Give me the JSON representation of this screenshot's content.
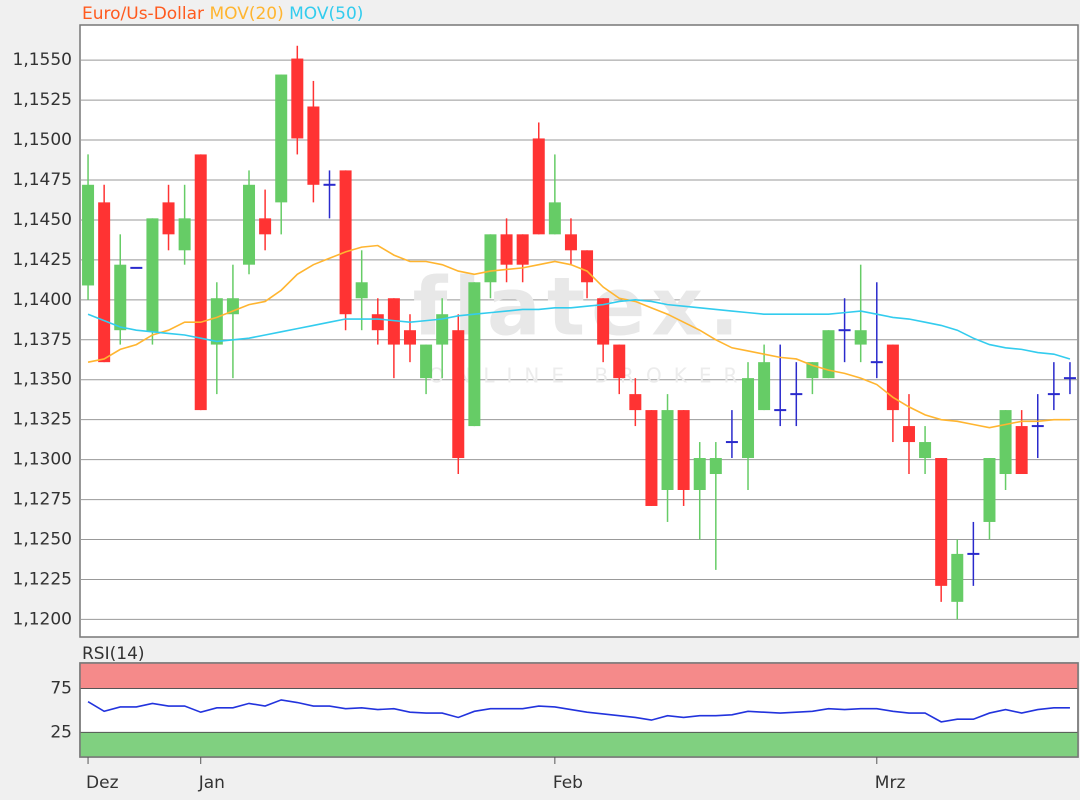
{
  "chart_data": [
    {
      "type": "candlestick",
      "name": "Euro/Us-Dollar",
      "color": "#ff5a1e",
      "up_color": "#66cc66",
      "down_color": "#ff3333",
      "flat_color": "#2a2acc",
      "open": [
        1.1409,
        1.1461,
        1.1381,
        1.142,
        1.138,
        1.1461,
        1.1431,
        1.1491,
        1.1372,
        1.1391,
        1.1422,
        1.1451,
        1.1461,
        1.1551,
        1.1521,
        1.1472,
        1.1481,
        1.1401,
        1.1391,
        1.1401,
        1.1381,
        1.1351,
        1.1372,
        1.1381,
        1.1321,
        1.1411,
        1.1441,
        1.1441,
        1.1501,
        1.1441,
        1.1441,
        1.1431,
        1.1401,
        1.1372,
        1.1341,
        1.1331,
        1.1281,
        1.1331,
        1.1281,
        1.1291,
        1.1311,
        1.1301,
        1.1331,
        1.1331,
        1.1341,
        1.1351,
        1.1351,
        1.1381,
        1.1372,
        1.1361,
        1.1372,
        1.1321,
        1.1301,
        1.1301,
        1.1211,
        1.1241,
        1.1261,
        1.1291,
        1.1321,
        1.1321,
        1.1341,
        1.1351
      ],
      "high": [
        1.1491,
        1.1472,
        1.1441,
        1.142,
        1.1451,
        1.1472,
        1.1472,
        1.1491,
        1.1411,
        1.1422,
        1.1481,
        1.1469,
        1.1541,
        1.1559,
        1.1537,
        1.1481,
        1.1481,
        1.1431,
        1.1401,
        1.1401,
        1.1391,
        1.1372,
        1.1401,
        1.1391,
        1.1411,
        1.1441,
        1.1451,
        1.1441,
        1.1511,
        1.1491,
        1.1451,
        1.1431,
        1.1401,
        1.1372,
        1.1351,
        1.1331,
        1.1341,
        1.1331,
        1.1311,
        1.1311,
        1.1331,
        1.1361,
        1.1372,
        1.1372,
        1.1361,
        1.1361,
        1.1381,
        1.1401,
        1.1422,
        1.1411,
        1.1372,
        1.1341,
        1.1321,
        1.1301,
        1.125,
        1.1261,
        1.1301,
        1.1331,
        1.1331,
        1.1341,
        1.1361,
        1.1361
      ],
      "low": [
        1.14,
        1.1361,
        1.1372,
        1.142,
        1.1372,
        1.1431,
        1.1422,
        1.1331,
        1.1341,
        1.1351,
        1.1416,
        1.1431,
        1.1441,
        1.1491,
        1.1461,
        1.1451,
        1.1381,
        1.1381,
        1.1372,
        1.1351,
        1.1361,
        1.1341,
        1.1351,
        1.1291,
        1.1321,
        1.1401,
        1.1411,
        1.1411,
        1.1441,
        1.1441,
        1.1422,
        1.1401,
        1.1361,
        1.1341,
        1.1321,
        1.1271,
        1.1261,
        1.1271,
        1.125,
        1.1231,
        1.1301,
        1.1281,
        1.1331,
        1.1321,
        1.1321,
        1.1341,
        1.1351,
        1.1361,
        1.1361,
        1.1351,
        1.1311,
        1.1291,
        1.1291,
        1.1211,
        1.12,
        1.1221,
        1.125,
        1.1281,
        1.1291,
        1.1301,
        1.1331,
        1.1341
      ],
      "close": [
        1.1472,
        1.1361,
        1.1422,
        1.142,
        1.1451,
        1.1441,
        1.1451,
        1.1331,
        1.1401,
        1.1401,
        1.1472,
        1.1441,
        1.1541,
        1.1501,
        1.1472,
        1.1472,
        1.1391,
        1.1411,
        1.1381,
        1.1372,
        1.1372,
        1.1372,
        1.1391,
        1.1301,
        1.1411,
        1.1441,
        1.1422,
        1.1422,
        1.1441,
        1.1461,
        1.1431,
        1.1411,
        1.1372,
        1.1351,
        1.1331,
        1.1271,
        1.1331,
        1.1281,
        1.1301,
        1.1301,
        1.1311,
        1.1351,
        1.1361,
        1.1331,
        1.1341,
        1.1361,
        1.1381,
        1.1381,
        1.1381,
        1.1361,
        1.1331,
        1.1311,
        1.1311,
        1.1221,
        1.1241,
        1.1241,
        1.1301,
        1.1331,
        1.1291,
        1.1321,
        1.1341,
        1.1351
      ],
      "series": [
        {
          "name": "MOV(20)",
          "color": "#ffb530",
          "values": [
            1.1361,
            1.1363,
            1.1369,
            1.1372,
            1.1378,
            1.1381,
            1.1386,
            1.1386,
            1.1389,
            1.1393,
            1.1397,
            1.1399,
            1.1406,
            1.1416,
            1.1422,
            1.1426,
            1.143,
            1.1433,
            1.1434,
            1.1428,
            1.1424,
            1.1424,
            1.1422,
            1.1418,
            1.1416,
            1.1418,
            1.1419,
            1.142,
            1.1422,
            1.1424,
            1.1422,
            1.1418,
            1.1408,
            1.1401,
            1.1399,
            1.1395,
            1.1391,
            1.1386,
            1.1381,
            1.1375,
            1.137,
            1.1368,
            1.1366,
            1.1364,
            1.1363,
            1.1359,
            1.1356,
            1.1354,
            1.1351,
            1.1347,
            1.1339,
            1.1333,
            1.1328,
            1.1325,
            1.1324,
            1.1322,
            1.132,
            1.1322,
            1.1324,
            1.1324,
            1.1325,
            1.1325
          ]
        },
        {
          "name": "MOV(50)",
          "color": "#33ccee",
          "values": [
            1.1391,
            1.1387,
            1.1383,
            1.1381,
            1.138,
            1.1379,
            1.1378,
            1.1376,
            1.1374,
            1.1375,
            1.1376,
            1.1378,
            1.138,
            1.1382,
            1.1384,
            1.1386,
            1.1388,
            1.1388,
            1.1388,
            1.1387,
            1.1386,
            1.1387,
            1.1388,
            1.139,
            1.1391,
            1.1392,
            1.1393,
            1.1394,
            1.1394,
            1.1395,
            1.1395,
            1.1396,
            1.1397,
            1.1399,
            1.14,
            1.1399,
            1.1397,
            1.1396,
            1.1395,
            1.1394,
            1.1393,
            1.1392,
            1.1391,
            1.1391,
            1.1391,
            1.1391,
            1.1391,
            1.1392,
            1.1393,
            1.1391,
            1.1389,
            1.1388,
            1.1386,
            1.1384,
            1.1381,
            1.1376,
            1.1372,
            1.137,
            1.1369,
            1.1367,
            1.1366,
            1.1363
          ]
        }
      ],
      "ylim": [
        1.1189,
        1.1572
      ],
      "yticks": [
        {
          "value": 1.12,
          "label": "1,1200"
        },
        {
          "value": 1.1225,
          "label": "1,1225"
        },
        {
          "value": 1.125,
          "label": "1,1250"
        },
        {
          "value": 1.1275,
          "label": "1,1275"
        },
        {
          "value": 1.13,
          "label": "1,1300"
        },
        {
          "value": 1.1325,
          "label": "1,1325"
        },
        {
          "value": 1.135,
          "label": "1,1350"
        },
        {
          "value": 1.1375,
          "label": "1,1375"
        },
        {
          "value": 1.14,
          "label": "1,1400"
        },
        {
          "value": 1.1425,
          "label": "1,1425"
        },
        {
          "value": 1.145,
          "label": "1,1450"
        },
        {
          "value": 1.1475,
          "label": "1,1475"
        },
        {
          "value": 1.15,
          "label": "1,1500"
        },
        {
          "value": 1.1525,
          "label": "1,1525"
        },
        {
          "value": 1.155,
          "label": "1,1550"
        }
      ],
      "grid": true,
      "watermark": {
        "logo": "flatex.",
        "tagline": "ONLINE BROKER"
      }
    },
    {
      "type": "line",
      "title": "RSI(14)",
      "title_color": "#1a1acc",
      "categories": [
        "Dez",
        null,
        null,
        null,
        null,
        null,
        null,
        "Jan",
        null,
        null,
        null,
        null,
        null,
        null,
        null,
        null,
        null,
        null,
        null,
        null,
        null,
        null,
        null,
        null,
        null,
        null,
        null,
        null,
        null,
        "Feb",
        null,
        null,
        null,
        null,
        null,
        null,
        null,
        null,
        null,
        null,
        null,
        null,
        null,
        null,
        null,
        null,
        null,
        null,
        null,
        "Mrz",
        null,
        null,
        null,
        null,
        null,
        null,
        null,
        null,
        null,
        null,
        null,
        null
      ],
      "series": [
        {
          "color": "#2233dd",
          "values": [
            60,
            49,
            54,
            54,
            58,
            55,
            55,
            48,
            53,
            53,
            58,
            55,
            62,
            59,
            55,
            55,
            52,
            53,
            51,
            52,
            48,
            47,
            47,
            42,
            49,
            52,
            52,
            52,
            55,
            54,
            51,
            48,
            46,
            44,
            42,
            39,
            44,
            42,
            44,
            44,
            45,
            49,
            48,
            47,
            48,
            49,
            52,
            51,
            52,
            52,
            49,
            47,
            47,
            37,
            40,
            40,
            47,
            51,
            47,
            51,
            53,
            53
          ]
        }
      ],
      "ylim": [
        -3,
        104
      ],
      "yticks": [
        25,
        75
      ],
      "upper_band_color": "#f58a8a",
      "lower_band_color": "#80d080"
    }
  ]
}
